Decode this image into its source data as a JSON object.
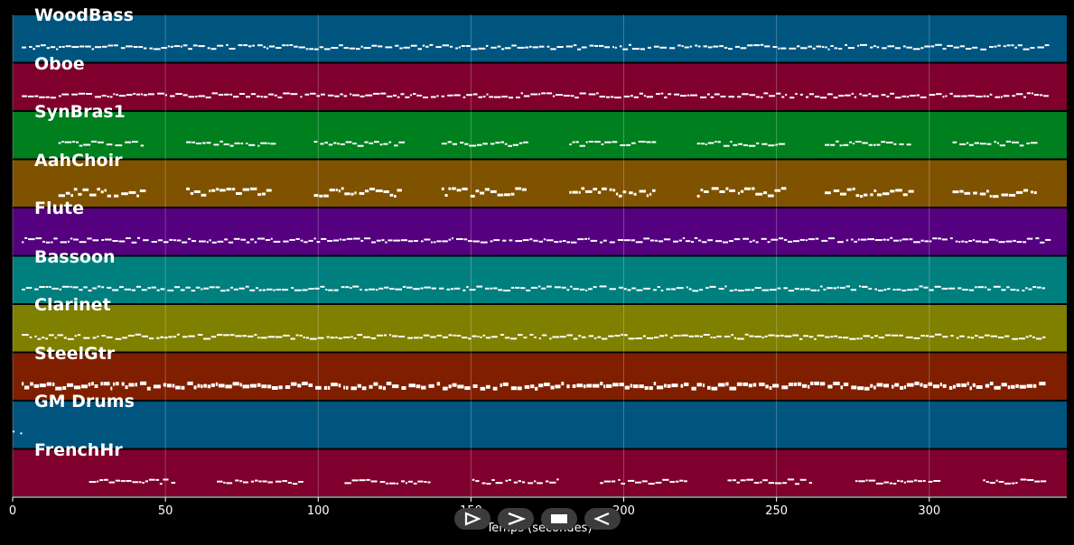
{
  "chart_data": {
    "type": "piano-roll",
    "xlabel": "Temps (secondes)",
    "xlim": [
      0,
      345
    ],
    "x_ticks": [
      0,
      50,
      100,
      150,
      200,
      250,
      300
    ],
    "grid": "vertical",
    "tracks": [
      {
        "name": "WoodBass",
        "color": "#00557f",
        "pattern": "continuous",
        "start": 3,
        "end": 338
      },
      {
        "name": "Oboe",
        "color": "#7f002d",
        "pattern": "continuous",
        "start": 3,
        "end": 338
      },
      {
        "name": "SynBras1",
        "color": "#007f1f",
        "pattern": "phrases",
        "start": 15,
        "end": 338
      },
      {
        "name": "AahChoir",
        "color": "#7f5200",
        "pattern": "phrases-dense",
        "start": 15,
        "end": 338
      },
      {
        "name": "Flute",
        "color": "#55007f",
        "pattern": "continuous",
        "start": 3,
        "end": 338
      },
      {
        "name": "Bassoon",
        "color": "#007f7f",
        "pattern": "continuous",
        "start": 3,
        "end": 338
      },
      {
        "name": "Clarinet",
        "color": "#7f7f00",
        "pattern": "continuous",
        "start": 3,
        "end": 338
      },
      {
        "name": "SteelGtr",
        "color": "#7f1f00",
        "pattern": "dense",
        "start": 3,
        "end": 338
      },
      {
        "name": "GM Drums",
        "color": "#00557f",
        "pattern": "sparse",
        "start": 0,
        "end": 3
      },
      {
        "name": "FrenchHr",
        "color": "#7f002d",
        "pattern": "phrases",
        "start": 25,
        "end": 338
      }
    ]
  },
  "controls": {
    "play_icon": "play-outline-icon",
    "forward_icon": "fast-forward-icon",
    "stop_icon": "stop-icon",
    "back_icon": "rewind-icon"
  }
}
